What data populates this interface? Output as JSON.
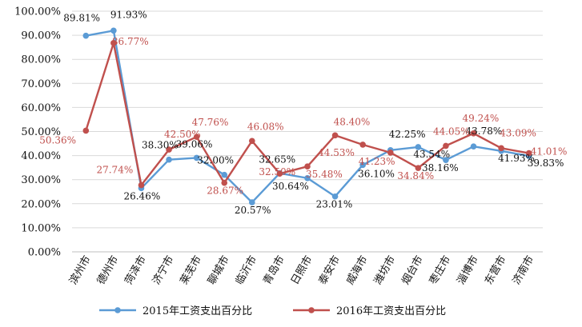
{
  "chart_data": {
    "type": "line",
    "categories": [
      "滨州市",
      "德州市",
      "菏泽市",
      "济宁市",
      "莱芜市",
      "聊城市",
      "临沂市",
      "青岛市",
      "日照市",
      "泰安市",
      "威海市",
      "潍坊市",
      "烟台市",
      "枣庄市",
      "淄博市",
      "东营市",
      "济南市"
    ],
    "series": [
      {
        "name": "2015年工资支出百分比",
        "values": [
          89.81,
          91.93,
          26.46,
          38.3,
          39.06,
          32.0,
          20.57,
          32.65,
          30.64,
          23.01,
          36.1,
          42.25,
          43.54,
          38.16,
          43.78,
          41.93,
          39.83
        ],
        "labels": [
          "89.81%",
          "91.93%",
          "26.46%",
          "38.30%",
          "39.06%",
          "32.00%",
          "20.57%",
          "32.65%",
          "30.64%",
          "23.01%",
          "36.10%",
          "42.25%",
          "43.54%",
          "38.16%",
          "43.78%",
          "41.93%",
          "39.83%"
        ],
        "color": "#5b9bd5"
      },
      {
        "name": "2016年工资支出百分比",
        "values": [
          50.36,
          86.77,
          27.74,
          42.5,
          47.76,
          28.67,
          46.08,
          32.5,
          35.48,
          48.4,
          44.53,
          41.23,
          34.84,
          44.05,
          49.24,
          43.09,
          41.01
        ],
        "labels": [
          "50.36%",
          "86.77%",
          "27.74%",
          "42.50%",
          "47.76%",
          "28.67%",
          "46.08%",
          "32.50%",
          "35.48%",
          "48.40%",
          "44.53%",
          "41.23%",
          "34.84%",
          "44.05%",
          "49.24%",
          "43.09%",
          "41.01%"
        ],
        "color": "#c0504d"
      }
    ],
    "y_ticks": [
      "0.00%",
      "10.00%",
      "20.00%",
      "30.00%",
      "40.00%",
      "50.00%",
      "60.00%",
      "70.00%",
      "80.00%",
      "90.00%",
      "100.00%"
    ],
    "ylim": [
      0,
      100
    ],
    "grid": true,
    "legend_position": "bottom"
  }
}
